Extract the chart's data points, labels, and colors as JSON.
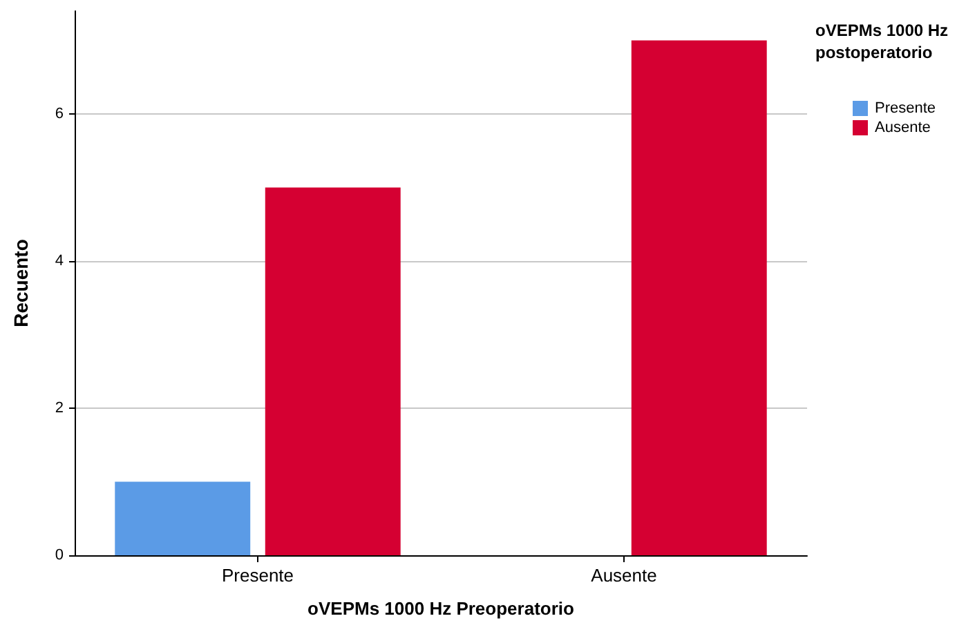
{
  "chart_data": {
    "type": "bar",
    "xlabel": "oVEPMs 1000 Hz Preoperatorio",
    "ylabel": "Recuento",
    "legend_title": "oVEPMs 1000 Hz postoperatorio",
    "categories": [
      "Presente",
      "Ausente"
    ],
    "series": [
      {
        "name": "Presente",
        "color": "#5b9be6",
        "values": [
          1,
          0
        ]
      },
      {
        "name": "Ausente",
        "color": "#d50032",
        "values": [
          5,
          7
        ]
      }
    ],
    "ylim": [
      0,
      7.4
    ],
    "yticks": [
      0,
      2,
      4,
      6
    ],
    "grid": "y",
    "legend": "top right"
  }
}
